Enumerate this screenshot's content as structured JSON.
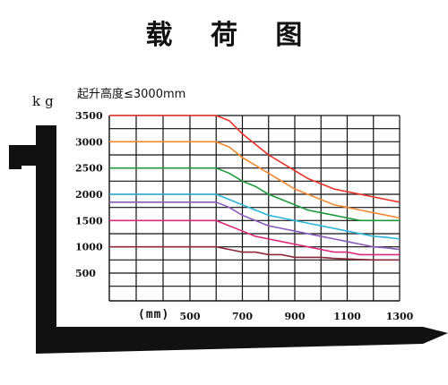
{
  "page": {
    "title": "载 荷 图",
    "subtitle": "起升高度≤3000mm",
    "y_unit": "kg",
    "x_unit": "(mm)"
  },
  "chart_data": {
    "type": "line",
    "title": "载荷图",
    "subtitle": "起升高度≤3000mm",
    "xlabel": "(mm)",
    "ylabel": "kg",
    "xlim": [
      500,
      1300
    ],
    "ylim": [
      0,
      3500
    ],
    "x_ticks": [
      500,
      700,
      900,
      1100,
      1300
    ],
    "y_ticks": [
      500,
      1000,
      1500,
      2000,
      2500,
      3000,
      3500
    ],
    "grid": true,
    "x": [
      500,
      550,
      600,
      650,
      700,
      750,
      800,
      850,
      900,
      950,
      1000,
      1050,
      1100,
      1150,
      1200,
      1250,
      1300
    ],
    "series": [
      {
        "color": "#e8322b",
        "values": [
          3500,
          3500,
          3500,
          3400,
          3150,
          2950,
          2750,
          2600,
          2450,
          2300,
          2200,
          2100,
          2050,
          2000,
          1950,
          1900,
          1850
        ]
      },
      {
        "color": "#f08a30",
        "values": [
          3000,
          3000,
          3000,
          2900,
          2700,
          2550,
          2400,
          2250,
          2100,
          2000,
          1900,
          1800,
          1750,
          1700,
          1650,
          1600,
          1550
        ]
      },
      {
        "color": "#1e9a3c",
        "values": [
          2500,
          2500,
          2500,
          2400,
          2250,
          2150,
          2000,
          1900,
          1800,
          1700,
          1650,
          1600,
          1550,
          1500,
          1500,
          1500,
          1500
        ]
      },
      {
        "color": "#2bb5d8",
        "values": [
          2000,
          2000,
          2000,
          1900,
          1800,
          1700,
          1600,
          1550,
          1500,
          1450,
          1400,
          1350,
          1300,
          1250,
          1200,
          1180,
          1150
        ]
      },
      {
        "color": "#8a5ab8",
        "values": [
          1850,
          1850,
          1850,
          1750,
          1600,
          1500,
          1400,
          1350,
          1300,
          1250,
          1200,
          1150,
          1100,
          1050,
          1000,
          980,
          950
        ]
      },
      {
        "color": "#d92a7a",
        "values": [
          1500,
          1500,
          1500,
          1400,
          1300,
          1200,
          1150,
          1100,
          1050,
          1000,
          950,
          900,
          900,
          850,
          850,
          850,
          850
        ]
      },
      {
        "color": "#8a2a3a",
        "values": [
          1000,
          1000,
          1000,
          950,
          900,
          900,
          850,
          850,
          800,
          800,
          800,
          780,
          770,
          760,
          750,
          750,
          750
        ]
      }
    ]
  }
}
